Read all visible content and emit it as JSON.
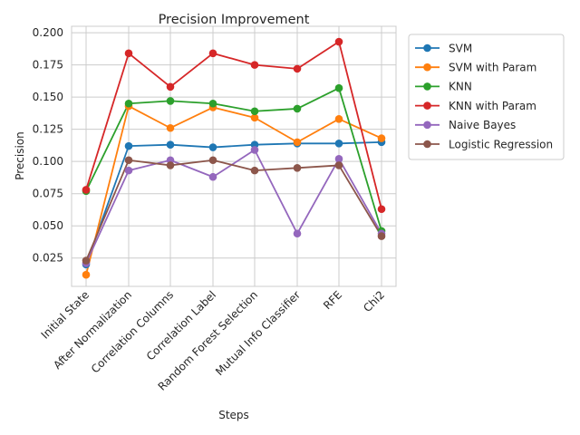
{
  "chart_data": {
    "type": "line",
    "title": "Precision Improvement",
    "xlabel": "Steps",
    "ylabel": "Precision",
    "categories": [
      "Initial State",
      "After Normalization",
      "Correlation Columns",
      "Correlation Label",
      "Random Forest Selection",
      "Mutual Info Classifier",
      "RFE",
      "Chi2"
    ],
    "ylim": [
      0.003,
      0.205
    ],
    "yticks": [
      "0.025",
      "0.050",
      "0.075",
      "0.100",
      "0.125",
      "0.150",
      "0.175",
      "0.200"
    ],
    "grid": true,
    "legend_position": "outside-right",
    "series": [
      {
        "name": "SVM",
        "color": "#1f77b4",
        "values": [
          0.02,
          0.112,
          0.113,
          0.111,
          0.113,
          0.114,
          0.114,
          0.115
        ]
      },
      {
        "name": "SVM with Param",
        "color": "#ff7f0e",
        "values": [
          0.012,
          0.143,
          0.126,
          0.142,
          0.134,
          0.115,
          0.133,
          0.118
        ]
      },
      {
        "name": "KNN",
        "color": "#2ca02c",
        "values": [
          0.077,
          0.145,
          0.147,
          0.145,
          0.139,
          0.141,
          0.157,
          0.046
        ]
      },
      {
        "name": "KNN with Param",
        "color": "#d62728",
        "values": [
          0.078,
          0.184,
          0.158,
          0.184,
          0.175,
          0.172,
          0.193,
          0.063
        ]
      },
      {
        "name": "Naive Bayes",
        "color": "#9467bd",
        "values": [
          0.021,
          0.093,
          0.101,
          0.088,
          0.109,
          0.044,
          0.102,
          0.044
        ]
      },
      {
        "name": "Logistic Regression",
        "color": "#8c564b",
        "values": [
          0.023,
          0.101,
          0.097,
          0.101,
          0.093,
          0.095,
          0.097,
          0.042
        ]
      }
    ]
  }
}
